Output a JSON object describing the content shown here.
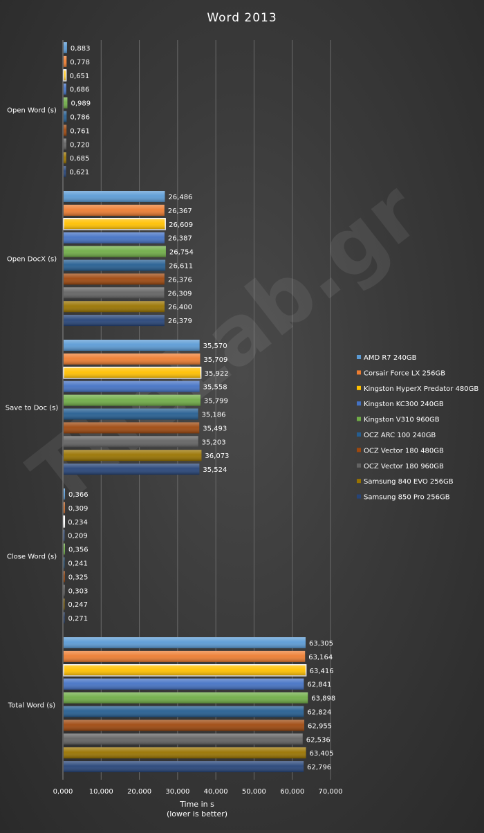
{
  "watermark": "TheLab.gr",
  "chart_data": {
    "type": "bar",
    "orientation": "horizontal",
    "title": "Word 2013",
    "xlabel_line1": "Time in s",
    "xlabel_line2": "(lower is better)",
    "ylabel": "",
    "xlim": [
      0,
      70000
    ],
    "xticks": [
      0,
      10000,
      20000,
      30000,
      40000,
      50000,
      60000,
      70000
    ],
    "xtick_labels": [
      "0,000",
      "10,000",
      "20,000",
      "30,000",
      "40,000",
      "50,000",
      "60,000",
      "70,000"
    ],
    "grid": true,
    "legend_position": "right",
    "categories": [
      "Open Word (s)",
      "Open DocX (s)",
      "Save to Doc (s)",
      "Close Word (s)",
      "Total Word (s)"
    ],
    "series": [
      {
        "name": "AMD R7 240GB",
        "color": "#5b9bd5",
        "values": [
          883,
          26486,
          35570,
          366,
          63305
        ],
        "labels": [
          "0,883",
          "26,486",
          "35,570",
          "0,366",
          "63,305"
        ]
      },
      {
        "name": "Corsair Force LX 256GB",
        "color": "#ed7d31",
        "values": [
          778,
          26367,
          35709,
          309,
          63164
        ],
        "labels": [
          "0,778",
          "26,367",
          "35,709",
          "0,309",
          "63,164"
        ]
      },
      {
        "name": "Kingston HyperX Predator 480GB",
        "color": "#ffc000",
        "values": [
          651,
          26609,
          35922,
          234,
          63416
        ],
        "labels": [
          "0,651",
          "26,609",
          "35,922",
          "0,234",
          "63,416"
        ]
      },
      {
        "name": "Kingston KC300 240GB",
        "color": "#4472c4",
        "values": [
          686,
          26387,
          35558,
          209,
          62841
        ],
        "labels": [
          "0,686",
          "26,387",
          "35,558",
          "0,209",
          "62,841"
        ]
      },
      {
        "name": "Kingston V310 960GB",
        "color": "#70ad47",
        "values": [
          989,
          26754,
          35799,
          356,
          63898
        ],
        "labels": [
          "0,989",
          "26,754",
          "35,799",
          "0,356",
          "63,898"
        ]
      },
      {
        "name": "OCZ ARC 100 240GB",
        "color": "#255e91",
        "values": [
          786,
          26611,
          35186,
          241,
          62824
        ],
        "labels": [
          "0,786",
          "26,611",
          "35,186",
          "0,241",
          "62,824"
        ]
      },
      {
        "name": "OCZ Vector 180 480GB",
        "color": "#9e480e",
        "values": [
          761,
          26376,
          35493,
          325,
          62955
        ],
        "labels": [
          "0,761",
          "26,376",
          "35,493",
          "0,325",
          "62,955"
        ]
      },
      {
        "name": "OCZ Vector 180 960GB",
        "color": "#636363",
        "values": [
          720,
          26309,
          35203,
          303,
          62536
        ],
        "labels": [
          "0,720",
          "26,309",
          "35,203",
          "0,303",
          "62,536"
        ]
      },
      {
        "name": "Samsung 840 EVO 256GB",
        "color": "#997300",
        "values": [
          685,
          26400,
          36073,
          247,
          63405
        ],
        "labels": [
          "0,685",
          "26,400",
          "36,073",
          "0,247",
          "63,405"
        ]
      },
      {
        "name": "Samsung 850 Pro 256GB",
        "color": "#264478",
        "values": [
          621,
          26379,
          35524,
          271,
          62796
        ],
        "labels": [
          "0,621",
          "26,379",
          "35,524",
          "0,271",
          "62,796"
        ]
      }
    ]
  }
}
